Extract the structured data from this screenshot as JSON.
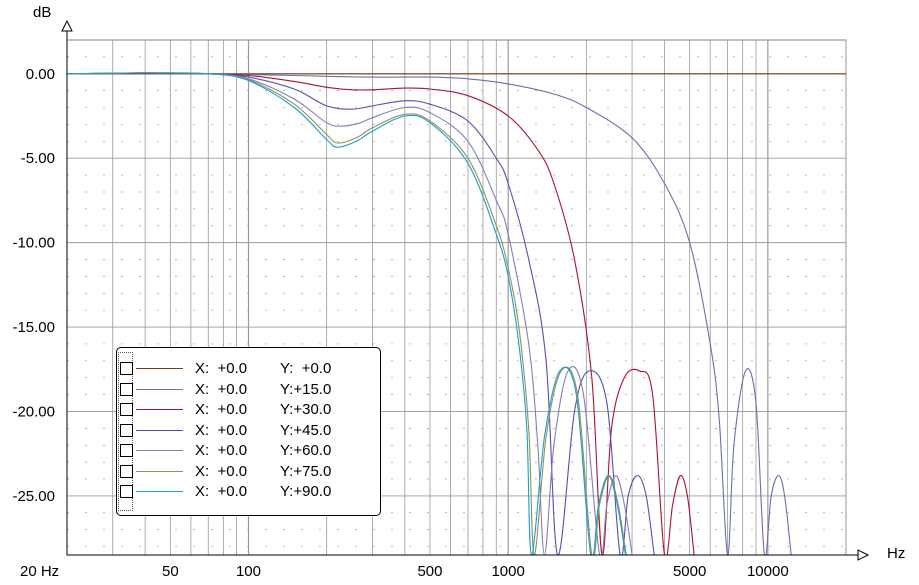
{
  "chart_data": {
    "type": "line",
    "ylabel": "dB",
    "xlabel": "Hz",
    "xscale": "log",
    "xlim": [
      20,
      20000
    ],
    "ylim": [
      -28.5,
      2
    ],
    "x_ticks": [
      {
        "value": 20,
        "label": "20 Hz"
      },
      {
        "value": 50,
        "label": "50"
      },
      {
        "value": 100,
        "label": "100"
      },
      {
        "value": 500,
        "label": "500"
      },
      {
        "value": 1000,
        "label": "1000"
      },
      {
        "value": 5000,
        "label": "5000"
      },
      {
        "value": 10000,
        "label": "10000"
      }
    ],
    "y_ticks": [
      {
        "value": 0,
        "label": "0.00"
      },
      {
        "value": -5,
        "label": "-5.00"
      },
      {
        "value": -10,
        "label": "-10.00"
      },
      {
        "value": -15,
        "label": "-15.00"
      },
      {
        "value": -20,
        "label": "-20.00"
      },
      {
        "value": -25,
        "label": "-25.00"
      }
    ],
    "grid": true,
    "legend_position": "bottom-left",
    "series": [
      {
        "x_label": "X:  +0.0",
        "y_label": "Y:  +0.0",
        "color": "#7b3a10",
        "points": [
          [
            20,
            0
          ],
          [
            20000,
            0
          ]
        ]
      },
      {
        "x_label": "X:  +0.0",
        "y_label": "Y:+15.0",
        "color": "#6870b0",
        "points": [
          [
            20,
            0
          ],
          [
            40,
            0.05
          ],
          [
            70,
            0
          ],
          [
            100,
            -0.05
          ],
          [
            150,
            -0.1
          ],
          [
            200,
            -0.15
          ],
          [
            300,
            -0.2
          ],
          [
            500,
            -0.2
          ],
          [
            700,
            -0.3
          ],
          [
            1000,
            -0.6
          ],
          [
            1500,
            -1.2
          ],
          [
            2000,
            -2.0
          ],
          [
            3000,
            -3.8
          ],
          [
            4000,
            -6.5
          ],
          [
            5000,
            -10.0
          ],
          [
            6000,
            -16.0
          ],
          [
            6500,
            -20.5
          ],
          [
            7000,
            -28.5
          ],
          [
            7400,
            -22.0
          ],
          [
            8200,
            -17.6
          ],
          [
            9000,
            -19.5
          ],
          [
            9700,
            -28.5
          ],
          [
            10300,
            -25.0
          ],
          [
            11000,
            -23.8
          ],
          [
            11600,
            -25.0
          ],
          [
            12300,
            -28.5
          ]
        ]
      },
      {
        "x_label": "X:  +0.0",
        "y_label": "Y:+30.0",
        "color": "#b0102a",
        "points": [
          [
            20,
            0
          ],
          [
            40,
            0.05
          ],
          [
            70,
            0
          ],
          [
            100,
            -0.1
          ],
          [
            150,
            -0.45
          ],
          [
            200,
            -0.8
          ],
          [
            250,
            -0.95
          ],
          [
            300,
            -0.95
          ],
          [
            400,
            -0.85
          ],
          [
            500,
            -0.9
          ],
          [
            700,
            -1.3
          ],
          [
            1000,
            -2.5
          ],
          [
            1300,
            -4.5
          ],
          [
            1500,
            -6.5
          ],
          [
            1800,
            -11.0
          ],
          [
            2100,
            -18.0
          ],
          [
            2300,
            -28.5
          ],
          [
            2500,
            -21.0
          ],
          [
            2800,
            -18.0
          ],
          [
            3200,
            -17.6
          ],
          [
            3600,
            -19.0
          ],
          [
            4000,
            -28.5
          ],
          [
            4300,
            -25.5
          ],
          [
            4600,
            -23.8
          ],
          [
            4900,
            -25.0
          ],
          [
            5200,
            -28.5
          ]
        ]
      },
      {
        "x_label": "X:  +0.0",
        "y_label": "Y:+45.0",
        "color": "#5050b8",
        "points": [
          [
            20,
            0
          ],
          [
            40,
            0.05
          ],
          [
            70,
            0
          ],
          [
            100,
            -0.2
          ],
          [
            150,
            -0.9
          ],
          [
            200,
            -1.9
          ],
          [
            250,
            -2.1
          ],
          [
            300,
            -1.9
          ],
          [
            400,
            -1.6
          ],
          [
            500,
            -1.8
          ],
          [
            700,
            -2.8
          ],
          [
            900,
            -5.0
          ],
          [
            1000,
            -6.5
          ],
          [
            1200,
            -11.0
          ],
          [
            1400,
            -17.0
          ],
          [
            1550,
            -28.5
          ],
          [
            1800,
            -20.0
          ],
          [
            2050,
            -17.6
          ],
          [
            2400,
            -19.5
          ],
          [
            2700,
            -28.5
          ],
          [
            2900,
            -25.0
          ],
          [
            3150,
            -23.8
          ],
          [
            3400,
            -25.0
          ],
          [
            3650,
            -28.5
          ]
        ]
      },
      {
        "x_label": "X:  +0.0",
        "y_label": "Y:+60.0",
        "color": "#8080b8",
        "points": [
          [
            20,
            0
          ],
          [
            40,
            0.05
          ],
          [
            70,
            0
          ],
          [
            100,
            -0.3
          ],
          [
            150,
            -1.5
          ],
          [
            200,
            -2.9
          ],
          [
            230,
            -3.1
          ],
          [
            270,
            -2.9
          ],
          [
            300,
            -2.6
          ],
          [
            400,
            -2.0
          ],
          [
            500,
            -2.3
          ],
          [
            700,
            -4.0
          ],
          [
            900,
            -7.5
          ],
          [
            1000,
            -9.5
          ],
          [
            1200,
            -16.0
          ],
          [
            1300,
            -22.0
          ],
          [
            1380,
            -28.5
          ],
          [
            1500,
            -22.0
          ],
          [
            1700,
            -17.6
          ],
          [
            1950,
            -19.0
          ],
          [
            2250,
            -28.5
          ],
          [
            2400,
            -25.5
          ],
          [
            2600,
            -23.8
          ],
          [
            2800,
            -25.5
          ],
          [
            3000,
            -28.5
          ]
        ]
      },
      {
        "x_label": "X:  +0.0",
        "y_label": "Y:+75.0",
        "color": "#909060",
        "points": [
          [
            20,
            0
          ],
          [
            40,
            0.05
          ],
          [
            70,
            0
          ],
          [
            100,
            -0.35
          ],
          [
            150,
            -1.8
          ],
          [
            200,
            -3.6
          ],
          [
            220,
            -4.1
          ],
          [
            260,
            -3.8
          ],
          [
            300,
            -3.2
          ],
          [
            400,
            -2.4
          ],
          [
            500,
            -2.8
          ],
          [
            700,
            -5.0
          ],
          [
            900,
            -9.0
          ],
          [
            1000,
            -11.5
          ],
          [
            1100,
            -15.0
          ],
          [
            1200,
            -21.0
          ],
          [
            1260,
            -28.5
          ],
          [
            1400,
            -21.5
          ],
          [
            1600,
            -17.6
          ],
          [
            1850,
            -19.0
          ],
          [
            2100,
            -28.5
          ],
          [
            2250,
            -25.5
          ],
          [
            2450,
            -23.8
          ],
          [
            2650,
            -25.5
          ],
          [
            2850,
            -28.5
          ]
        ]
      },
      {
        "x_label": "X:  +0.0",
        "y_label": "Y:+90.0",
        "color": "#18a0c8",
        "points": [
          [
            20,
            0
          ],
          [
            40,
            0.05
          ],
          [
            70,
            0
          ],
          [
            100,
            -0.4
          ],
          [
            150,
            -2.0
          ],
          [
            200,
            -3.9
          ],
          [
            220,
            -4.35
          ],
          [
            260,
            -4.0
          ],
          [
            300,
            -3.4
          ],
          [
            400,
            -2.5
          ],
          [
            500,
            -2.9
          ],
          [
            700,
            -5.3
          ],
          [
            900,
            -9.5
          ],
          [
            1000,
            -12.0
          ],
          [
            1100,
            -16.0
          ],
          [
            1180,
            -21.0
          ],
          [
            1230,
            -28.5
          ],
          [
            1380,
            -21.5
          ],
          [
            1580,
            -17.6
          ],
          [
            1830,
            -19.0
          ],
          [
            2080,
            -28.5
          ],
          [
            2230,
            -25.5
          ],
          [
            2430,
            -23.8
          ],
          [
            2630,
            -25.5
          ],
          [
            2830,
            -28.5
          ]
        ]
      }
    ]
  }
}
